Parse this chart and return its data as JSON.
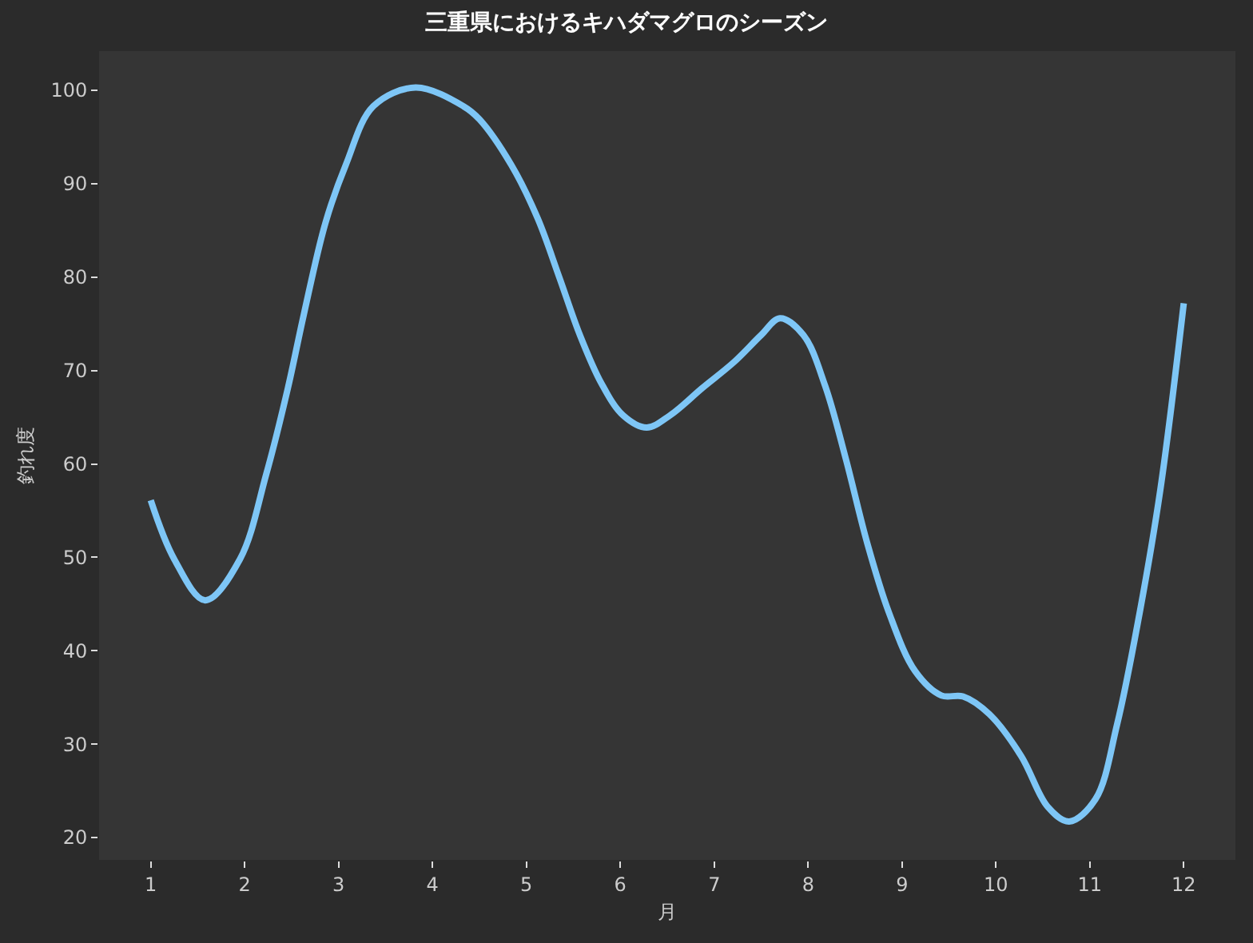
{
  "chart_data": {
    "type": "line",
    "title": "三重県におけるキハダマグロのシーズン",
    "xlabel": "月",
    "ylabel": "釣れ度",
    "x": [
      1.0,
      1.25,
      1.58,
      1.95,
      2.23,
      2.46,
      2.63,
      2.86,
      3.08,
      3.37,
      3.82,
      4.33,
      4.5,
      4.84,
      5.12,
      5.35,
      5.57,
      5.8,
      6.03,
      6.28,
      6.53,
      6.87,
      7.21,
      7.5,
      7.7,
      7.95,
      8.18,
      8.4,
      8.63,
      8.86,
      9.14,
      9.42,
      9.65,
      9.93,
      10.27,
      10.55,
      10.78,
      11.06,
      11.29,
      11.52,
      11.75,
      12.0
    ],
    "values": [
      56.1,
      49.8,
      45.4,
      49.8,
      58.9,
      68.1,
      76.0,
      85.8,
      92.1,
      98.3,
      100.3,
      98.3,
      96.9,
      92.0,
      86.3,
      80.0,
      73.8,
      68.6,
      65.2,
      63.9,
      65.2,
      68.1,
      70.9,
      73.8,
      75.6,
      73.8,
      68.4,
      60.6,
      51.5,
      44.1,
      37.8,
      35.2,
      35.1,
      33.2,
      28.7,
      23.3,
      21.7,
      24.1,
      32.1,
      43.5,
      57.2,
      77.2
    ],
    "color": "#7ec6f6",
    "line_style": "solid",
    "xlim": [
      0.45,
      12.55
    ],
    "ylim": [
      17.6,
      104.2
    ],
    "xticks": [
      1,
      2,
      3,
      4,
      5,
      6,
      7,
      8,
      9,
      10,
      11,
      12
    ],
    "yticks": [
      20,
      30,
      40,
      50,
      60,
      70,
      80,
      90,
      100
    ]
  }
}
